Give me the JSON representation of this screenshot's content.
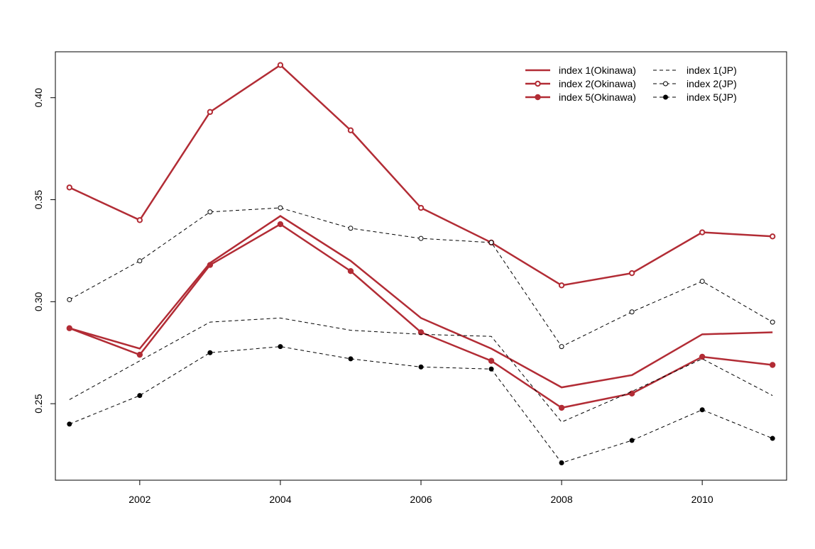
{
  "chart_data": {
    "type": "line",
    "title": "",
    "xlabel": "",
    "ylabel": "",
    "x": [
      2001,
      2002,
      2003,
      2004,
      2005,
      2006,
      2007,
      2008,
      2009,
      2010,
      2011
    ],
    "xlim": [
      2000.8,
      2011.2
    ],
    "ylim": [
      0.2125,
      0.4225
    ],
    "xticks": [
      2002,
      2004,
      2006,
      2008,
      2010
    ],
    "xtick_labels": [
      "2002",
      "2004",
      "2006",
      "2008",
      "2010"
    ],
    "yticks": [
      0.25,
      0.3,
      0.35,
      0.4
    ],
    "ytick_labels": [
      "0.25",
      "0.30",
      "0.35",
      "0.40"
    ],
    "grid": false,
    "legend_position": "top-right",
    "series": [
      {
        "name": "index 1(Okinawa)",
        "color": "#b22c35",
        "line": "solid",
        "marker": "none",
        "values": [
          0.287,
          0.277,
          0.319,
          0.342,
          0.32,
          0.292,
          0.277,
          0.258,
          0.264,
          0.284,
          0.285
        ]
      },
      {
        "name": "index 2(Okinawa)",
        "color": "#b22c35",
        "line": "solid",
        "marker": "open-circle",
        "values": [
          0.356,
          0.34,
          0.393,
          0.416,
          0.384,
          0.346,
          0.329,
          0.308,
          0.314,
          0.334,
          0.332
        ]
      },
      {
        "name": "index 5(Okinawa)",
        "color": "#b22c35",
        "line": "solid",
        "marker": "filled-circle",
        "values": [
          0.287,
          0.274,
          0.318,
          0.338,
          0.315,
          0.285,
          0.271,
          0.248,
          0.255,
          0.273,
          0.269
        ]
      },
      {
        "name": "index 1(JP)",
        "color": "#000000",
        "line": "dashed",
        "marker": "none",
        "values": [
          0.252,
          0.271,
          0.29,
          0.292,
          0.286,
          0.284,
          0.283,
          0.241,
          0.256,
          0.272,
          0.254
        ]
      },
      {
        "name": "index 2(JP)",
        "color": "#000000",
        "line": "dashed",
        "marker": "open-circle",
        "values": [
          0.301,
          0.32,
          0.344,
          0.346,
          0.336,
          0.331,
          0.329,
          0.278,
          0.295,
          0.31,
          0.29
        ]
      },
      {
        "name": "index 5(JP)",
        "color": "#000000",
        "line": "dashed",
        "marker": "filled-circle",
        "values": [
          0.24,
          0.254,
          0.275,
          0.278,
          0.272,
          0.268,
          0.267,
          0.221,
          0.232,
          0.247,
          0.233
        ]
      }
    ]
  }
}
